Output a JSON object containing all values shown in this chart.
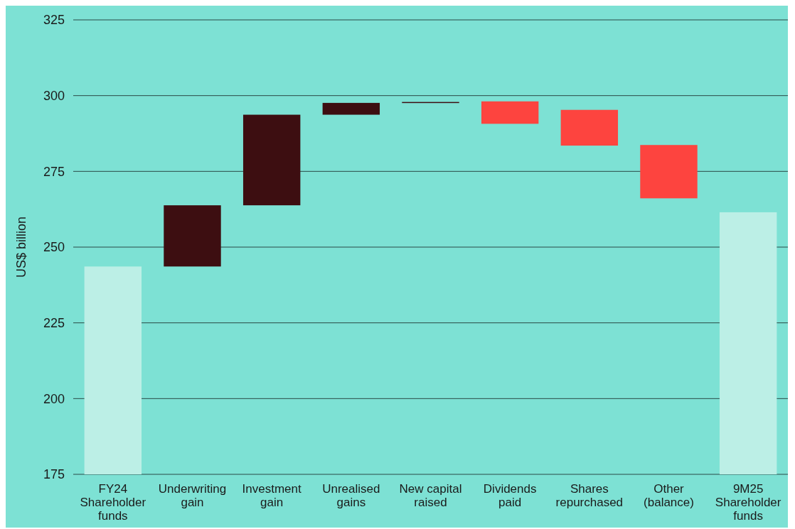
{
  "chart_data": {
    "type": "bar",
    "ylabel": "US$ billion",
    "categories": [
      "FY24 Shareholder funds",
      "Underwriting gain",
      "Investment gain",
      "Unrealised gains",
      "New capital raised",
      "Dividends paid",
      "Shares repurchased",
      "Other (balance)",
      "9M25 Shareholder funds"
    ],
    "values": [
      68.6,
      20.2,
      29.9,
      3.9,
      0.3,
      -7.4,
      -11.8,
      -17.6,
      86.5
    ],
    "base": [
      175,
      243.6,
      263.8,
      293.7,
      297.6,
      298.1,
      295.3,
      283.7,
      175
    ],
    "colors": [
      "#bcefe6",
      "#3d0e11",
      "#3d0e11",
      "#3d0e11",
      "#3d0e11",
      "#fd443f",
      "#fd443f",
      "#fd443f",
      "#bcefe6"
    ],
    "ylim": [
      175,
      325
    ],
    "yticks": [
      175,
      200,
      225,
      250,
      275,
      300,
      325
    ],
    "grid": "y"
  }
}
